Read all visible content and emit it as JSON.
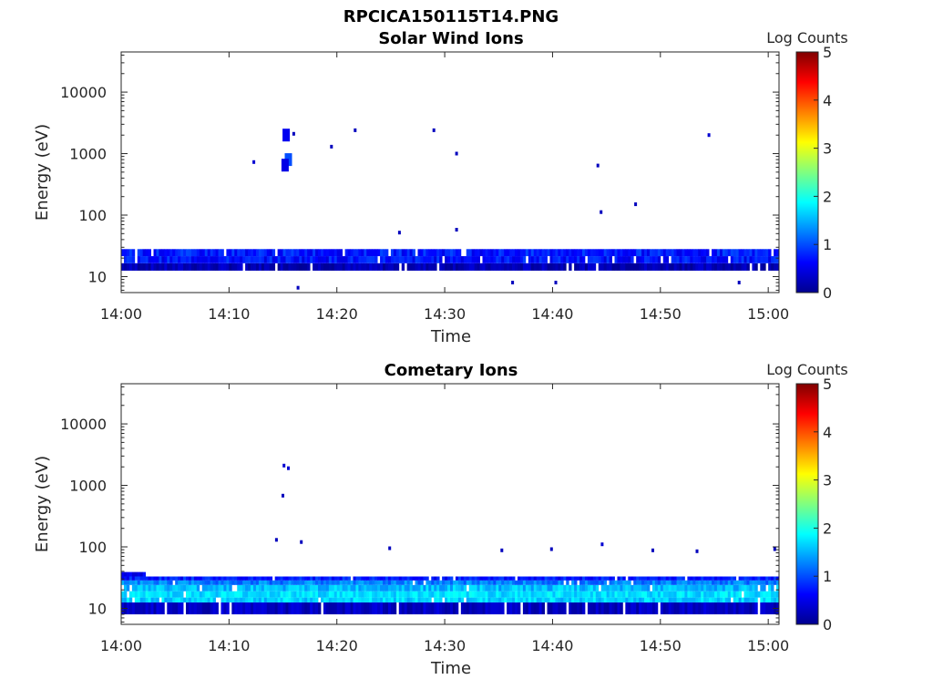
{
  "figure_title": "RPCICA150115T14.PNG",
  "chart_data": [
    {
      "type": "heatmap",
      "title": "Solar Wind Ions",
      "xlabel": "Time",
      "ylabel": "Energy (eV)",
      "x_ticks": [
        "14:00",
        "14:10",
        "14:20",
        "14:30",
        "14:40",
        "14:50",
        "15:00"
      ],
      "x_range_minutes": [
        0,
        61
      ],
      "y_scale": "log",
      "y_ticks": [
        "10",
        "100",
        "1000",
        "10000"
      ],
      "y_range": [
        5.5,
        45000
      ],
      "colorbar": {
        "label": "Log Counts",
        "ticks": [
          "0",
          "1",
          "2",
          "3",
          "4",
          "5"
        ],
        "range": [
          0,
          5
        ],
        "colormap": "jet"
      },
      "bands": [
        {
          "e_low": 12.5,
          "e_high": 16.5,
          "t_start": 0,
          "t_end": 61,
          "level_range": [
            0.1,
            0.45
          ]
        },
        {
          "e_low": 16.5,
          "e_high": 21.5,
          "t_start": 0,
          "t_end": 61,
          "level_range": [
            0.45,
            0.95
          ]
        },
        {
          "e_low": 21.5,
          "e_high": 28.0,
          "t_start": 0,
          "t_end": 61,
          "level_range": [
            0.5,
            1.0
          ]
        }
      ],
      "blobs": [
        {
          "t": 15.3,
          "e": 2000,
          "level": 0.55
        },
        {
          "t": 15.5,
          "e": 800,
          "level": 1.0
        },
        {
          "t": 15.2,
          "e": 650,
          "level": 0.5
        }
      ],
      "points": [
        {
          "t": 12.3,
          "e": 730,
          "level": 0.4
        },
        {
          "t": 16.0,
          "e": 2100,
          "level": 0.3
        },
        {
          "t": 19.5,
          "e": 1300,
          "level": 0.3
        },
        {
          "t": 21.7,
          "e": 2400,
          "level": 0.3
        },
        {
          "t": 25.8,
          "e": 52,
          "level": 0.3
        },
        {
          "t": 29.0,
          "e": 2400,
          "level": 0.3
        },
        {
          "t": 31.1,
          "e": 1000,
          "level": 0.3
        },
        {
          "t": 31.1,
          "e": 58,
          "level": 0.3
        },
        {
          "t": 44.2,
          "e": 640,
          "level": 0.3
        },
        {
          "t": 44.5,
          "e": 112,
          "level": 0.3
        },
        {
          "t": 47.7,
          "e": 150,
          "level": 0.3
        },
        {
          "t": 54.5,
          "e": 2000,
          "level": 0.4
        },
        {
          "t": 16.4,
          "e": 6.6,
          "level": 0.3
        },
        {
          "t": 36.3,
          "e": 8.0,
          "level": 0.3
        },
        {
          "t": 40.3,
          "e": 8.0,
          "level": 0.3
        },
        {
          "t": 57.3,
          "e": 8.0,
          "level": 0.3
        }
      ]
    },
    {
      "type": "heatmap",
      "title": "Cometary Ions",
      "xlabel": "Time",
      "ylabel": "Energy (eV)",
      "x_ticks": [
        "14:00",
        "14:10",
        "14:20",
        "14:30",
        "14:40",
        "14:50",
        "15:00"
      ],
      "x_range_minutes": [
        0,
        61
      ],
      "y_scale": "log",
      "y_ticks": [
        "10",
        "100",
        "1000",
        "10000"
      ],
      "y_range": [
        5.5,
        45000
      ],
      "colorbar": {
        "label": "Log Counts",
        "ticks": [
          "0",
          "1",
          "2",
          "3",
          "4",
          "5"
        ],
        "range": [
          0,
          5
        ],
        "colormap": "jet"
      },
      "bands": [
        {
          "e_low": 8.0,
          "e_high": 12.5,
          "t_start": 0,
          "t_end": 61,
          "level_range": [
            0.15,
            0.5
          ]
        },
        {
          "e_low": 12.5,
          "e_high": 15.0,
          "t_start": 0,
          "t_end": 61,
          "level_range": [
            1.4,
            1.9
          ]
        },
        {
          "e_low": 15.0,
          "e_high": 19.0,
          "t_start": 0,
          "t_end": 61,
          "level_range": [
            1.5,
            1.95
          ]
        },
        {
          "e_low": 19.0,
          "e_high": 24.0,
          "t_start": 0,
          "t_end": 61,
          "level_range": [
            1.3,
            1.8
          ]
        },
        {
          "e_low": 24.0,
          "e_high": 28.5,
          "t_start": 0,
          "t_end": 61,
          "level_range": [
            1.0,
            1.5
          ]
        },
        {
          "e_low": 28.5,
          "e_high": 33.0,
          "t_start": 0,
          "t_end": 61,
          "level_range": [
            0.5,
            1.0
          ]
        },
        {
          "e_low": 33.0,
          "e_high": 39.0,
          "t_start": 0,
          "t_end": 2.2,
          "level_range": [
            0.4,
            0.7
          ]
        }
      ],
      "blobs": [],
      "points": [
        {
          "t": 15.1,
          "e": 2100,
          "level": 0.4
        },
        {
          "t": 15.5,
          "e": 1900,
          "level": 0.4
        },
        {
          "t": 15.0,
          "e": 680,
          "level": 0.3
        },
        {
          "t": 14.4,
          "e": 130,
          "level": 0.3
        },
        {
          "t": 16.7,
          "e": 120,
          "level": 0.3
        },
        {
          "t": 24.9,
          "e": 95,
          "level": 0.3
        },
        {
          "t": 35.3,
          "e": 88,
          "level": 0.3
        },
        {
          "t": 39.9,
          "e": 92,
          "level": 0.3
        },
        {
          "t": 44.6,
          "e": 110,
          "level": 0.4
        },
        {
          "t": 49.3,
          "e": 88,
          "level": 0.3
        },
        {
          "t": 60.6,
          "e": 92,
          "level": 0.3
        },
        {
          "t": 53.4,
          "e": 85,
          "level": 0.3
        }
      ]
    }
  ]
}
